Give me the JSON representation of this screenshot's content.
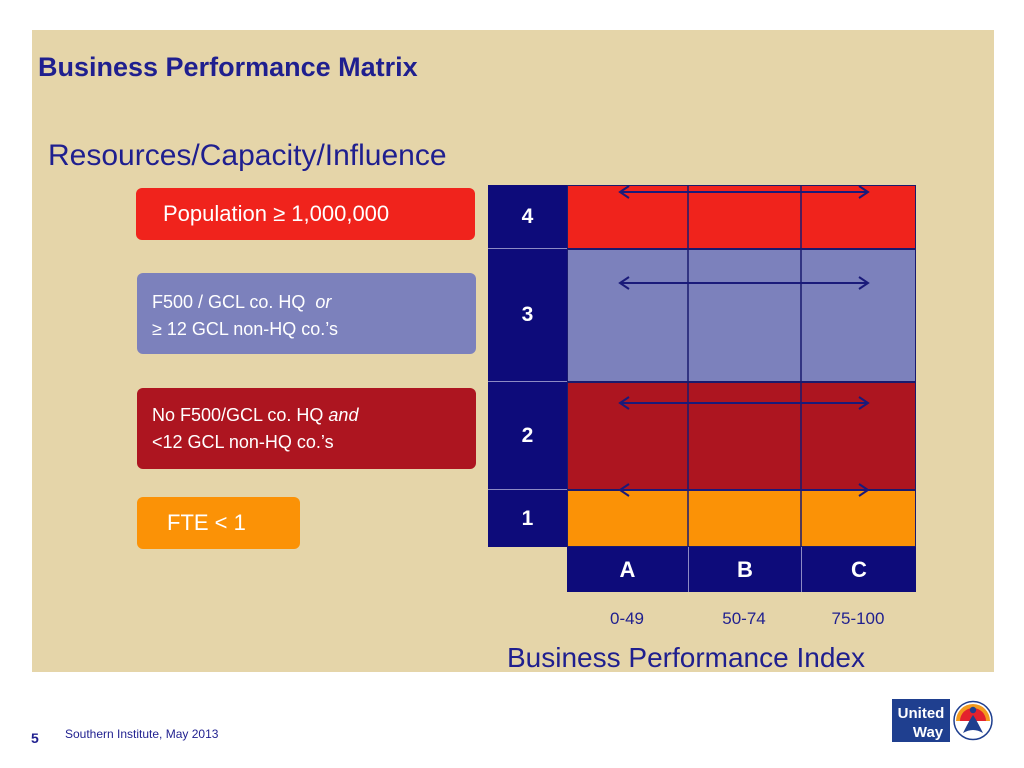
{
  "slide": {
    "title": "Business Performance Matrix",
    "subtitle": "Resources/Capacity/Influence",
    "page_number": "5",
    "footer": "Southern Institute, May 2013"
  },
  "criteria": {
    "population": "Population ≥ 1,000,000",
    "f500_line1": "F500 / GCL co. HQ",
    "f500_line1_emph": "or",
    "f500_line2": "≥ 12 GCL non-HQ co.’s",
    "nof500_line1": "No F500/GCL co.  HQ",
    "nof500_line1_emph": "and",
    "nof500_line2": "<12 GCL non-HQ co.’s",
    "fte": "FTE < 1"
  },
  "matrix": {
    "rows": [
      {
        "label": "4",
        "color": "#f0231c"
      },
      {
        "label": "3",
        "color": "#7c81bc"
      },
      {
        "label": "2",
        "color": "#ad1520"
      },
      {
        "label": "1",
        "color": "#fb9206"
      }
    ],
    "columns": [
      {
        "label": "A",
        "range": "0-49"
      },
      {
        "label": "B",
        "range": "50-74"
      },
      {
        "label": "C",
        "range": "75-100"
      }
    ],
    "x_axis_title": "Business Performance Index",
    "label_color": "#0d0b7a",
    "arrow_color": "#1a1a7a"
  },
  "logo": {
    "line1": "United",
    "line2": "Way",
    "brand_color": "#1f3f8f"
  }
}
